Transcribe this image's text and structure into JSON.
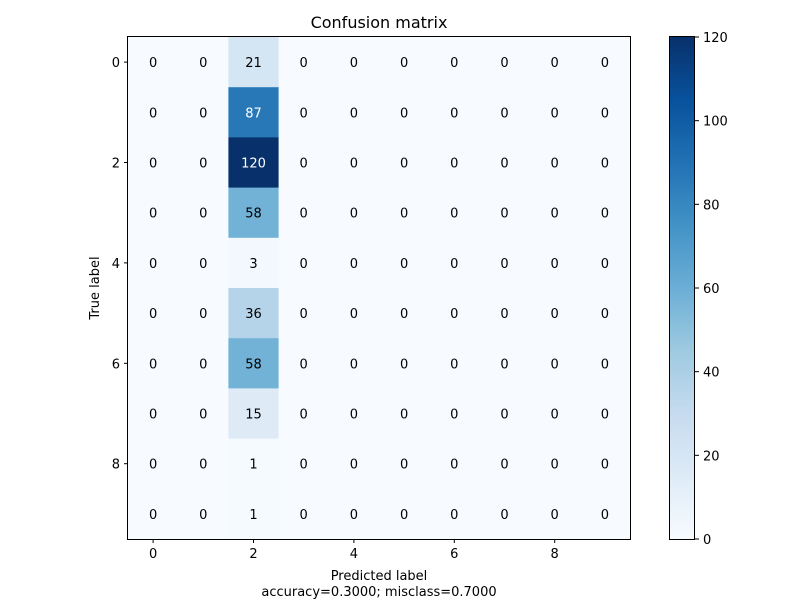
{
  "chart_data": {
    "type": "heatmap",
    "title": "Confusion matrix",
    "xlabel": "Predicted label",
    "ylabel": "True label",
    "footer": "accuracy=0.3000; misclass=0.7000",
    "x_ticks": [
      0,
      2,
      4,
      6,
      8
    ],
    "y_ticks": [
      0,
      2,
      4,
      6,
      8
    ],
    "colorbar": {
      "min": 0,
      "max": 120,
      "ticks": [
        0,
        20,
        40,
        60,
        80,
        100,
        120
      ]
    },
    "colormap": "Blues",
    "matrix": [
      [
        0,
        0,
        21,
        0,
        0,
        0,
        0,
        0,
        0,
        0
      ],
      [
        0,
        0,
        87,
        0,
        0,
        0,
        0,
        0,
        0,
        0
      ],
      [
        0,
        0,
        120,
        0,
        0,
        0,
        0,
        0,
        0,
        0
      ],
      [
        0,
        0,
        58,
        0,
        0,
        0,
        0,
        0,
        0,
        0
      ],
      [
        0,
        0,
        3,
        0,
        0,
        0,
        0,
        0,
        0,
        0
      ],
      [
        0,
        0,
        36,
        0,
        0,
        0,
        0,
        0,
        0,
        0
      ],
      [
        0,
        0,
        58,
        0,
        0,
        0,
        0,
        0,
        0,
        0
      ],
      [
        0,
        0,
        15,
        0,
        0,
        0,
        0,
        0,
        0,
        0
      ],
      [
        0,
        0,
        1,
        0,
        0,
        0,
        0,
        0,
        0,
        0
      ],
      [
        0,
        0,
        1,
        0,
        0,
        0,
        0,
        0,
        0,
        0
      ]
    ]
  }
}
